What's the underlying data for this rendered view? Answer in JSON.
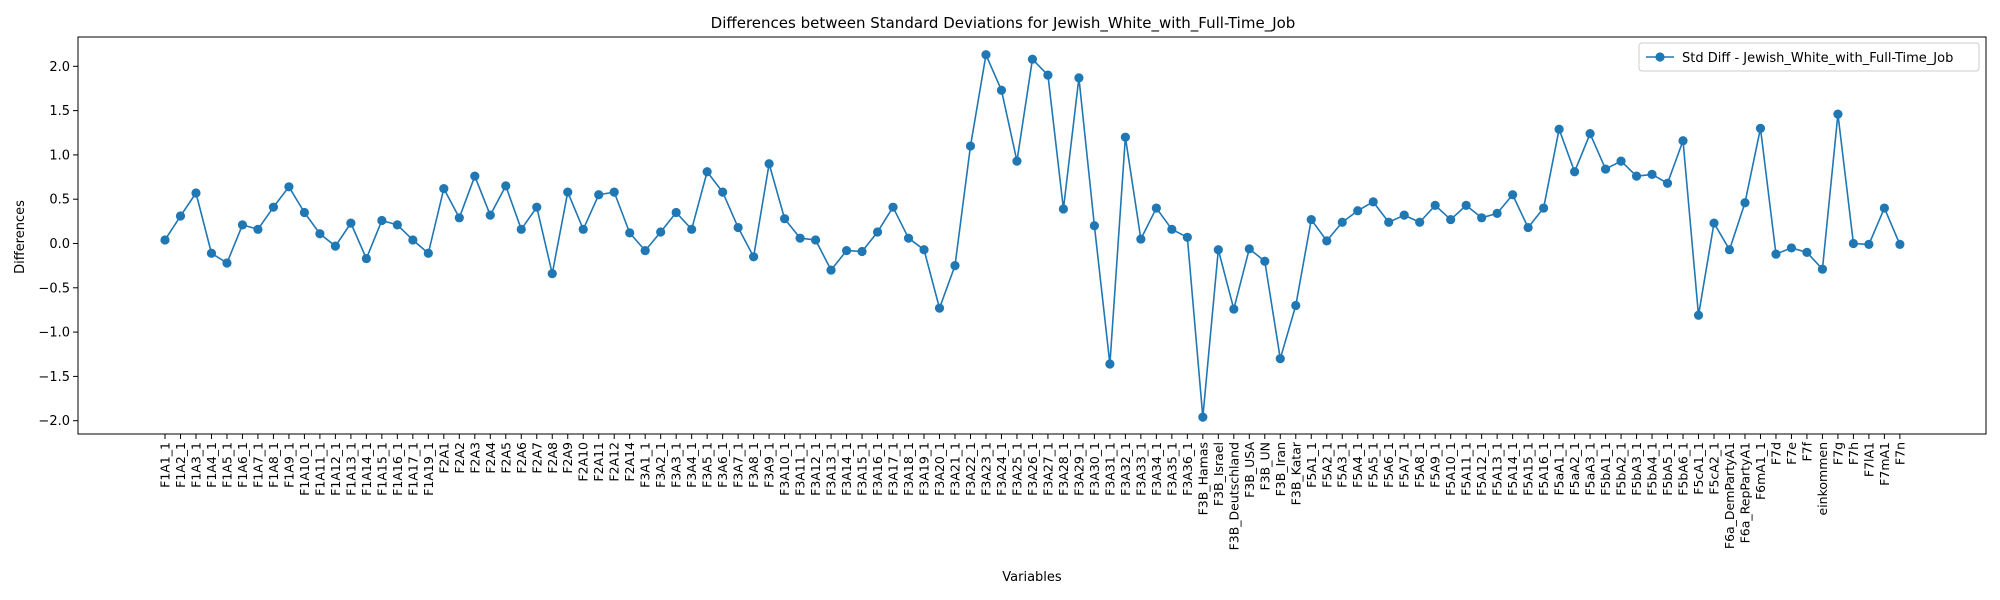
{
  "chart_data": {
    "type": "line",
    "title": "Differences between Standard Deviations for Jewish_White_with_Full-Time_Job",
    "xlabel": "Variables",
    "ylabel": "Differences",
    "ylim": [
      -2.15,
      2.32
    ],
    "yticks": [
      -2.0,
      -1.5,
      -1.0,
      -0.5,
      0.0,
      0.5,
      1.0,
      1.5,
      2.0
    ],
    "ytick_labels": [
      "−2.0",
      "−1.5",
      "−1.0",
      "−0.5",
      "0.0",
      "0.5",
      "1.0",
      "1.5",
      "2.0"
    ],
    "grid": false,
    "legend_position": "top-right",
    "color": "#1f77b4",
    "categories": [
      "F1A1_1",
      "F1A2_1",
      "F1A3_1",
      "F1A4_1",
      "F1A5_1",
      "F1A6_1",
      "F1A7_1",
      "F1A8_1",
      "F1A9_1",
      "F1A10_1",
      "F1A11_1",
      "F1A12_1",
      "F1A13_1",
      "F1A14_1",
      "F1A15_1",
      "F1A16_1",
      "F1A17_1",
      "F1A19_1",
      "F2A1",
      "F2A2",
      "F2A3",
      "F2A4",
      "F2A5",
      "F2A6",
      "F2A7",
      "F2A8",
      "F2A9",
      "F2A10",
      "F2A11",
      "F2A12",
      "F2A14",
      "F3A1_1",
      "F3A2_1",
      "F3A3_1",
      "F3A4_1",
      "F3A5_1",
      "F3A6_1",
      "F3A7_1",
      "F3A8_1",
      "F3A9_1",
      "F3A10_1",
      "F3A11_1",
      "F3A12_1",
      "F3A13_1",
      "F3A14_1",
      "F3A15_1",
      "F3A16_1",
      "F3A17_1",
      "F3A18_1",
      "F3A19_1",
      "F3A20_1",
      "F3A21_1",
      "F3A22_1",
      "F3A23_1",
      "F3A24_1",
      "F3A25_1",
      "F3A26_1",
      "F3A27_1",
      "F3A28_1",
      "F3A29_1",
      "F3A30_1",
      "F3A31_1",
      "F3A32_1",
      "F3A33_1",
      "F3A34_1",
      "F3A35_1",
      "F3A36_1",
      "F3B_Hamas",
      "F3B_Israel",
      "F3B_Deutschland",
      "F3B_USA",
      "F3B_UN",
      "F3B_Iran",
      "F3B_Katar",
      "F5A1_1",
      "F5A2_1",
      "F5A3_1",
      "F5A4_1",
      "F5A5_1",
      "F5A6_1",
      "F5A7_1",
      "F5A8_1",
      "F5A9_1",
      "F5A10_1",
      "F5A11_1",
      "F5A12_1",
      "F5A13_1",
      "F5A14_1",
      "F5A15_1",
      "F5A16_1",
      "F5aA1_1",
      "F5aA2_1",
      "F5aA3_1",
      "F5bA1_1",
      "F5bA2_1",
      "F5bA3_1",
      "F5bA4_1",
      "F5bA5_1",
      "F5bA6_1",
      "F5cA1_1",
      "F5cA2_1",
      "F6a_DemPartyA1",
      "F6a_RepPartyA1",
      "F6mA1_1",
      "F7d",
      "F7e",
      "F7f",
      "einkommen",
      "F7g",
      "F7h",
      "F7lA1",
      "F7mA1",
      "F7n"
    ],
    "series": [
      {
        "name": "Std Diff - Jewish_White_with_Full-Time_Job",
        "values": [
          0.04,
          0.31,
          0.57,
          -0.11,
          -0.22,
          0.21,
          0.16,
          0.41,
          0.64,
          0.35,
          0.11,
          -0.03,
          0.23,
          -0.17,
          0.26,
          0.21,
          0.04,
          -0.11,
          0.62,
          0.29,
          0.76,
          0.32,
          0.65,
          0.16,
          0.41,
          -0.34,
          0.58,
          0.16,
          0.55,
          0.58,
          0.12,
          -0.08,
          0.13,
          0.35,
          0.16,
          0.81,
          0.58,
          0.18,
          -0.15,
          0.9,
          0.28,
          0.06,
          0.04,
          -0.3,
          -0.08,
          -0.09,
          0.13,
          0.41,
          0.06,
          -0.07,
          -0.73,
          -0.25,
          1.1,
          2.13,
          1.73,
          0.93,
          2.08,
          1.9,
          0.39,
          1.87,
          0.2,
          -1.36,
          1.2,
          0.05,
          0.4,
          0.16,
          0.07,
          -1.96,
          -0.07,
          -0.74,
          -0.06,
          -0.2,
          -1.3,
          -0.7,
          0.27,
          0.03,
          0.24,
          0.37,
          0.47,
          0.24,
          0.32,
          0.24,
          0.43,
          0.27,
          0.43,
          0.29,
          0.34,
          0.55,
          0.18,
          0.4,
          1.29,
          0.81,
          1.24,
          0.84,
          0.93,
          0.76,
          0.78,
          0.68,
          1.16,
          -0.81,
          0.23,
          -0.07,
          0.46,
          1.3,
          -0.12,
          -0.05,
          -0.1,
          -0.29,
          1.46,
          0.0,
          -0.01,
          0.4,
          -0.01
        ]
      }
    ]
  }
}
